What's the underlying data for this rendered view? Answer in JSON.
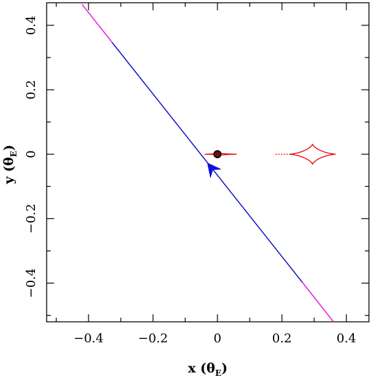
{
  "chart_data": {
    "type": "line",
    "title": "",
    "xlabel": {
      "main": "x (θ",
      "sub": "E",
      "close": ")"
    },
    "ylabel": {
      "main": "y (θ",
      "sub": "E",
      "close": ")"
    },
    "xlim": [
      -0.53,
      0.47
    ],
    "ylim": [
      -0.52,
      0.47
    ],
    "grid": false,
    "x_ticks": [
      {
        "value": -0.4,
        "label": "−0.4"
      },
      {
        "value": -0.2,
        "label": "−0.2"
      },
      {
        "value": 0,
        "label": "0"
      },
      {
        "value": 0.2,
        "label": "0.2"
      },
      {
        "value": 0.4,
        "label": "0.4"
      }
    ],
    "y_ticks": [
      {
        "value": -0.4,
        "label": "−0.4"
      },
      {
        "value": -0.2,
        "label": "−0.2"
      },
      {
        "value": 0,
        "label": "0"
      },
      {
        "value": 0.2,
        "label": "0.2"
      },
      {
        "value": 0.4,
        "label": "0.4"
      }
    ],
    "x_minor_step": 0.1,
    "y_minor_step": 0.1,
    "series": [
      {
        "role": "source-trajectory-blue",
        "color": "#1010c8",
        "x": [
          -0.327,
          0.263
        ],
        "y": [
          0.347,
          -0.397
        ]
      },
      {
        "role": "trajectory-extension-upper",
        "color": "#e020e0",
        "x": [
          -0.42,
          -0.327
        ],
        "y": [
          0.465,
          0.347
        ]
      },
      {
        "role": "trajectory-extension-lower",
        "color": "#e020e0",
        "x": [
          0.263,
          0.36
        ],
        "y": [
          -0.397,
          -0.52
        ]
      }
    ],
    "caustics": [
      {
        "role": "central-caustic",
        "color": "#e00000",
        "center": [
          0.01,
          0
        ],
        "half_width": 0.05,
        "half_height": 0.003
      },
      {
        "role": "planetary-caustic",
        "color": "#e00000",
        "center": [
          0.295,
          0
        ],
        "half_width": 0.072,
        "half_height": 0.032,
        "tail": [
          0.18,
          0.225
        ]
      }
    ],
    "lens_position": {
      "x": 0,
      "y": 0,
      "fill": "#7a0a0a",
      "stroke": "#000000"
    },
    "arrow": {
      "x": -0.017,
      "y": -0.045,
      "direction_dx": 0.59,
      "direction_dy": -0.744,
      "color": "#1010e0"
    }
  }
}
